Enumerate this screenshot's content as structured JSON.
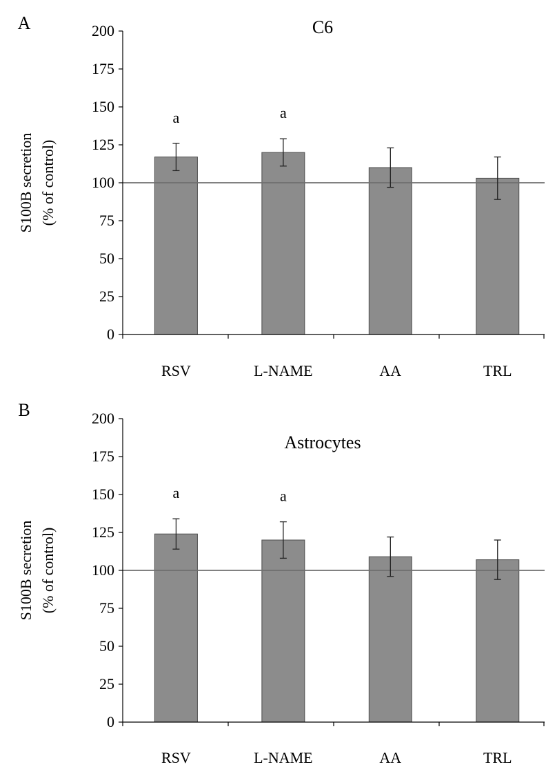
{
  "chart_data": [
    {
      "type": "bar",
      "panel_label": "A",
      "title": "C6",
      "ylabel_lines": [
        "S100B secretion",
        "(% of control)"
      ],
      "categories": [
        "RSV",
        "L-NAME",
        "AA",
        "TRL"
      ],
      "values": [
        117,
        120,
        110,
        103
      ],
      "errors": [
        9,
        9,
        13,
        14
      ],
      "significance": [
        "a",
        "a",
        "",
        ""
      ],
      "ylim": [
        0,
        200
      ],
      "yticks": [
        0,
        25,
        50,
        75,
        100,
        125,
        150,
        175,
        200
      ],
      "reference_line": 100,
      "bar_color": "#8c8c8c",
      "grid": false
    },
    {
      "type": "bar",
      "panel_label": "B",
      "title": "Astrocytes",
      "ylabel_lines": [
        "S100B secretion",
        "(% of control)"
      ],
      "categories": [
        "RSV",
        "L-NAME",
        "AA",
        "TRL"
      ],
      "values": [
        124,
        120,
        109,
        107
      ],
      "errors": [
        10,
        12,
        13,
        13
      ],
      "significance": [
        "a",
        "a",
        "",
        ""
      ],
      "ylim": [
        0,
        200
      ],
      "yticks": [
        0,
        25,
        50,
        75,
        100,
        125,
        150,
        175,
        200
      ],
      "reference_line": 100,
      "bar_color": "#8c8c8c",
      "grid": false
    }
  ]
}
